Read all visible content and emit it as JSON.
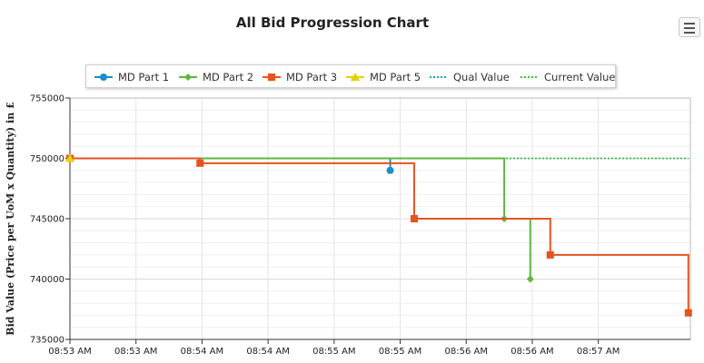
{
  "title": "All Bid Progression Chart",
  "menu": {
    "icon": "hamburger-menu-icon"
  },
  "legend": [
    {
      "label": "MD Part 1",
      "color": "#1a8fc9",
      "marker": "circle",
      "line": "solid"
    },
    {
      "label": "MD Part 2",
      "color": "#5cb83e",
      "marker": "diamond",
      "line": "solid"
    },
    {
      "label": "MD Part 3",
      "color": "#e6531f",
      "marker": "square",
      "line": "solid"
    },
    {
      "label": "MD Part 5",
      "color": "#e8d000",
      "marker": "triangle",
      "line": "solid"
    },
    {
      "label": "Qual Value",
      "color": "#17a3c9",
      "marker": "none",
      "line": "dotted"
    },
    {
      "label": "Current Value",
      "color": "#3bc23b",
      "marker": "none",
      "line": "dotted"
    }
  ],
  "chart_data": {
    "type": "line",
    "title": "All Bid Progression Chart",
    "ylabel": "Bid Value (Price per UoM x Quantity) in £",
    "xlabel": "",
    "ylim": [
      735000,
      755000
    ],
    "xlim": [
      0,
      310
    ],
    "yticks": [
      "735000",
      "740000",
      "745000",
      "750000",
      "755000"
    ],
    "xticks": [
      {
        "x": 0,
        "label": "08:53 AM"
      },
      {
        "x": 33,
        "label": "08:53 AM"
      },
      {
        "x": 66,
        "label": "08:54 AM"
      },
      {
        "x": 99,
        "label": "08:54 AM"
      },
      {
        "x": 132,
        "label": "08:55 AM"
      },
      {
        "x": 165,
        "label": "08:55 AM"
      },
      {
        "x": 198,
        "label": "08:56 AM"
      },
      {
        "x": 231,
        "label": "08:56 AM"
      },
      {
        "x": 264,
        "label": "08:57 AM"
      }
    ],
    "grid": true,
    "legend_position": "top",
    "series": [
      {
        "name": "MD Part 1",
        "step": true,
        "color": "#1a8fc9",
        "marker": "circle",
        "points": [
          [
            0,
            750000
          ],
          [
            160,
            749000
          ]
        ]
      },
      {
        "name": "MD Part 2",
        "step": true,
        "color": "#5cb83e",
        "marker": "diamond",
        "points": [
          [
            0,
            750000
          ],
          [
            217,
            745000
          ],
          [
            230,
            740000
          ]
        ]
      },
      {
        "name": "MD Part 3",
        "step": true,
        "color": "#e6531f",
        "marker": "square",
        "points": [
          [
            0,
            750000
          ],
          [
            65,
            749600
          ],
          [
            172,
            745000
          ],
          [
            240,
            742000
          ],
          [
            309,
            737200
          ]
        ]
      },
      {
        "name": "MD Part 5",
        "step": true,
        "color": "#e8d000",
        "marker": "triangle",
        "points": [
          [
            0,
            750000
          ]
        ]
      },
      {
        "name": "Qual Value",
        "color": "#17a3c9",
        "dashed": true,
        "points": [
          [
            0,
            750000
          ],
          [
            309,
            750000
          ]
        ]
      },
      {
        "name": "Current Value",
        "color": "#3bc23b",
        "dashed": true,
        "points": [
          [
            0,
            750000
          ],
          [
            309,
            750000
          ]
        ]
      }
    ]
  }
}
